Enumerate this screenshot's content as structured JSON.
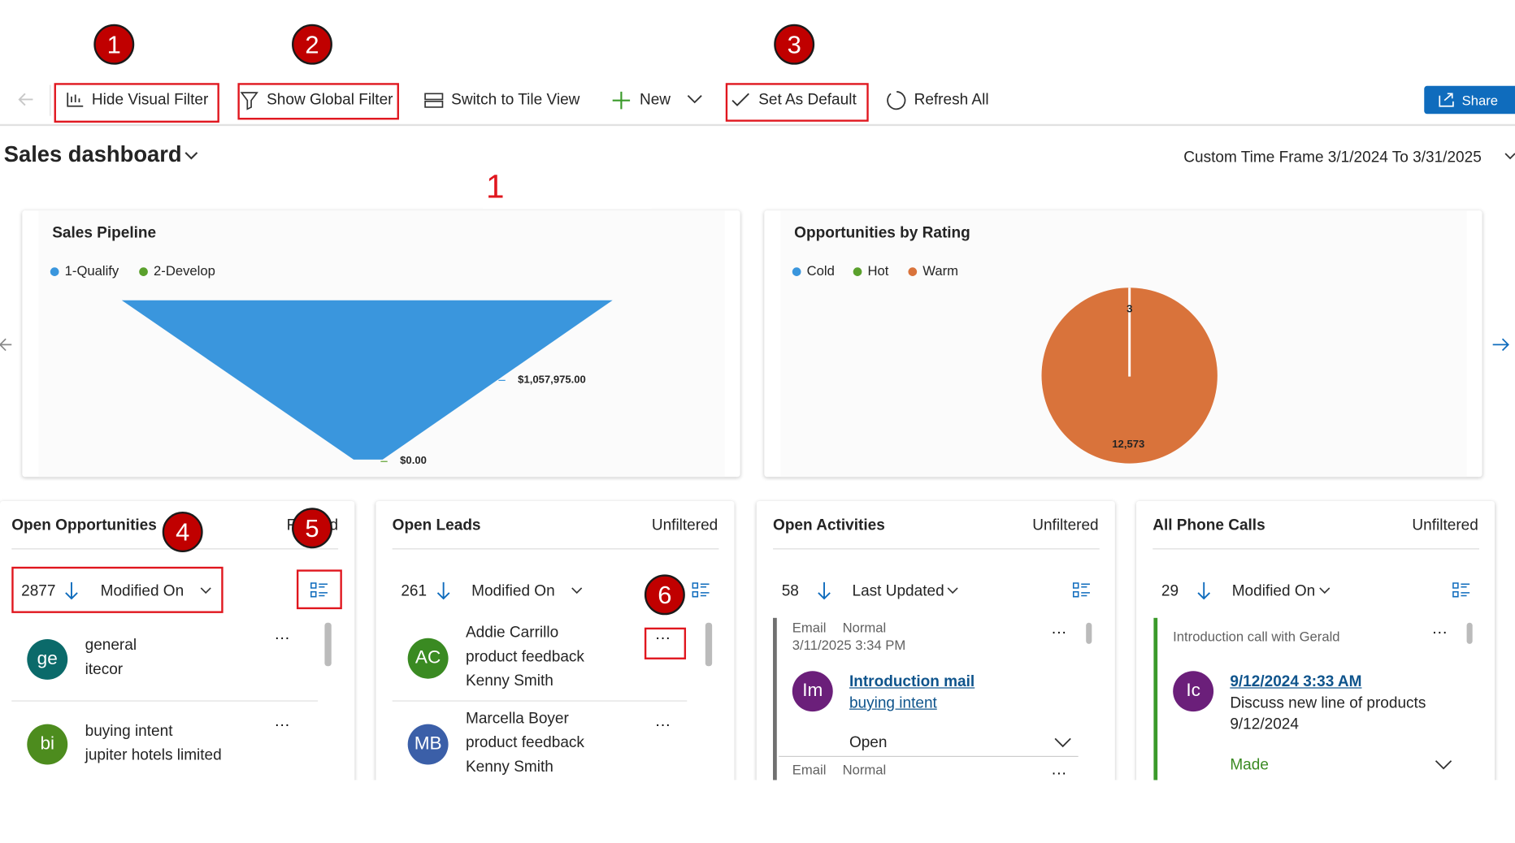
{
  "toolbar": {
    "items": [
      "Hide Visual Filter",
      "Show Global Filter",
      "Switch to Tile View",
      "New",
      "Set As Default",
      "Refresh All"
    ],
    "share": "Share"
  },
  "callouts": [
    1,
    2,
    3,
    4,
    5,
    6
  ],
  "header": {
    "title": "Sales dashboard",
    "time_frame": "Custom Time Frame 3/1/2024 To 3/31/2025",
    "marker": "1"
  },
  "charts": [
    {
      "title": "Sales Pipeline",
      "legend": [
        "1-Qualify",
        "2-Develop"
      ],
      "labels": [
        "$1,057,975.00",
        "$0.00"
      ]
    },
    {
      "title": "Opportunities by Rating",
      "legend": [
        "Cold",
        "Hot",
        "Warm"
      ],
      "labels": [
        "3",
        "12,573"
      ]
    }
  ],
  "lists": [
    {
      "title": "Open Opportunities",
      "filter": "Filtered",
      "count": 2877,
      "sort": "Modified On",
      "rows": [
        {
          "initials": "ge",
          "lines": [
            "general",
            "itecor"
          ]
        },
        {
          "initials": "bi",
          "lines": [
            "buying intent",
            "jupiter hotels limited"
          ]
        }
      ]
    },
    {
      "title": "Open Leads",
      "filter": "Unfiltered",
      "count": 261,
      "sort": "Modified On",
      "rows": [
        {
          "initials": "AC",
          "lines": [
            "Addie Carrillo",
            "product feedback",
            "Kenny Smith"
          ]
        },
        {
          "initials": "MB",
          "lines": [
            "Marcella Boyer",
            "product feedback",
            "Kenny Smith"
          ]
        }
      ]
    },
    {
      "title": "Open Activities",
      "filter": "Unfiltered",
      "count": 58,
      "sort": "Last Updated",
      "card": {
        "type": "Email",
        "priority": "Normal",
        "date": "3/11/2025 3:34 PM",
        "initials": "Im",
        "link": "Introduction mail",
        "sublink": "buying intent",
        "status": "Open"
      },
      "card2": {
        "type": "Email",
        "priority": "Normal"
      }
    },
    {
      "title": "All Phone Calls",
      "filter": "Unfiltered",
      "count": 29,
      "sort": "Modified On",
      "card": {
        "subject": "Introduction call with Gerald",
        "initials": "Ic",
        "link": "9/12/2024 3:33 AM",
        "description": "Discuss new line of products",
        "date": "9/12/2024",
        "status": "Made"
      }
    }
  ]
}
